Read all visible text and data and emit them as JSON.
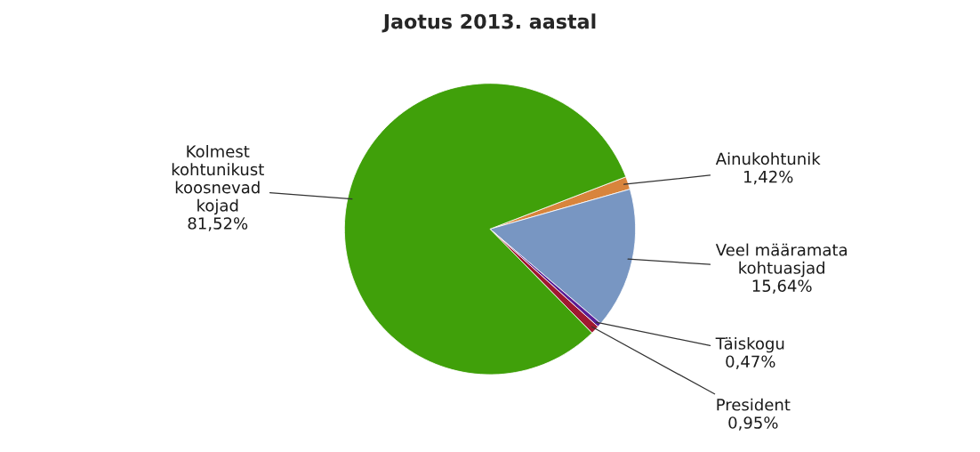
{
  "chart_data": {
    "type": "pie",
    "title": "Jaotus 2013. aastal",
    "categories": [
      "Ainukohtunik",
      "Veel määramata\nkohtuasjad",
      "Täiskogu",
      "President",
      "Kolmest\nkohtunikust\nkoosnevad\nkojad"
    ],
    "values": [
      1.42,
      15.64,
      0.47,
      0.95,
      81.52
    ],
    "value_labels": [
      "1,42%",
      "15,64%",
      "0,47%",
      "0,95%",
      "81,52%"
    ],
    "colors": [
      "#d8843c",
      "#7896c2",
      "#5a1e96",
      "#a01830",
      "#40a00a"
    ]
  }
}
